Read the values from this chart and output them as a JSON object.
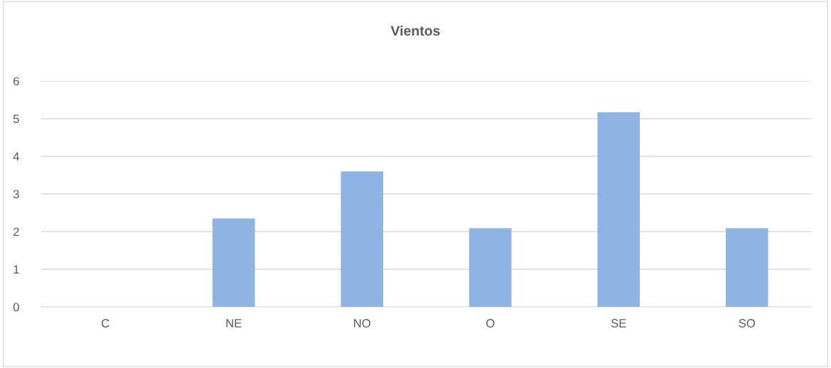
{
  "chart_data": {
    "type": "bar",
    "title": "Vientos",
    "categories": [
      "C",
      "NE",
      "NO",
      "O",
      "SE",
      "SO"
    ],
    "values": [
      0,
      2.35,
      3.6,
      2.09,
      5.17,
      2.09
    ],
    "color": "#8eb4e3",
    "ylim": [
      0,
      6
    ],
    "yticks": [
      0,
      1,
      2,
      3,
      4,
      5,
      6
    ],
    "grid": "y",
    "legend": false
  }
}
